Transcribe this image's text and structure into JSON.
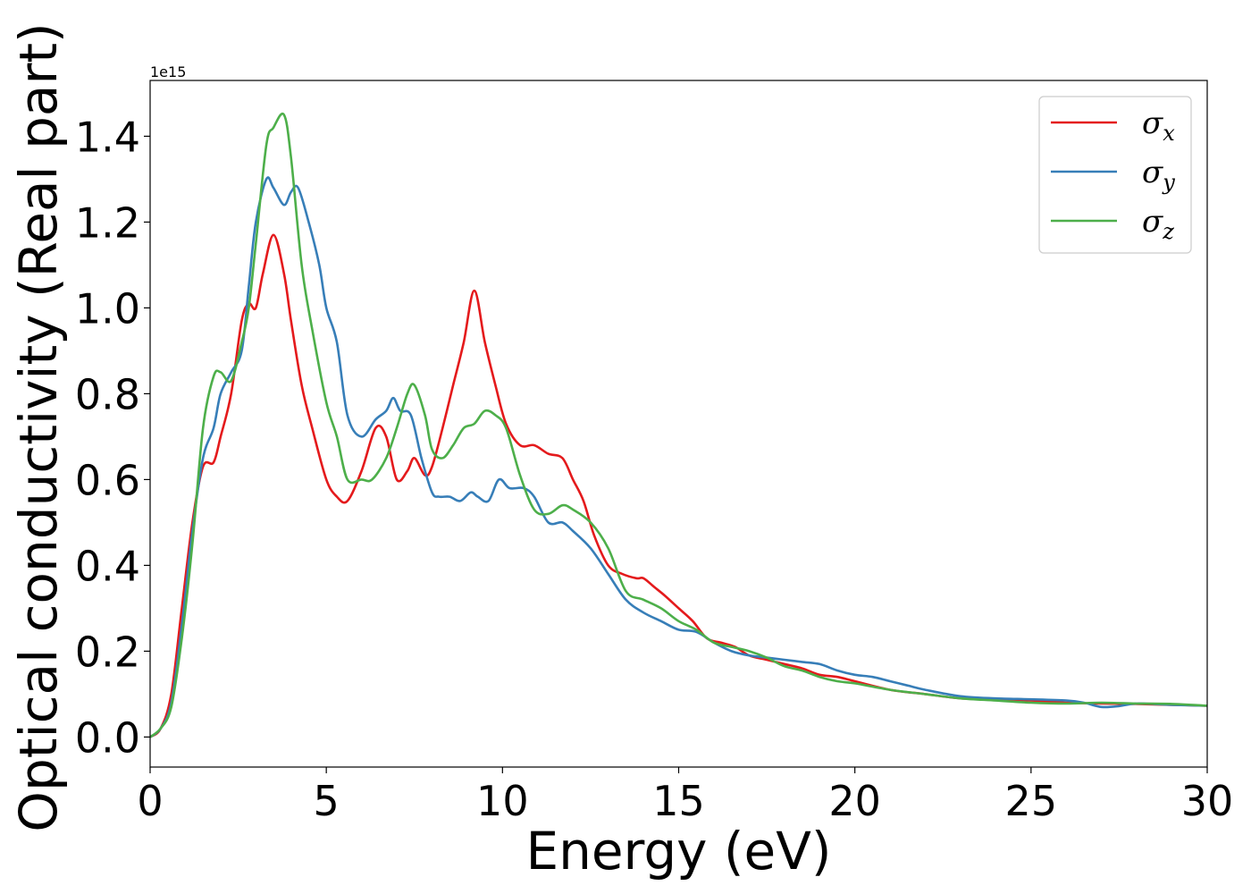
{
  "chart_data": {
    "type": "line",
    "xlabel": "Energy (eV)",
    "ylabel": "Optical conductivity (Real part)",
    "y_offset_label": "1e15",
    "xlim": [
      0,
      30
    ],
    "ylim": [
      -0.07,
      1.53
    ],
    "xticks": [
      0,
      5,
      10,
      15,
      20,
      25,
      30
    ],
    "xtick_labels": [
      "0",
      "5",
      "10",
      "15",
      "20",
      "25",
      "30"
    ],
    "yticks": [
      0.0,
      0.2,
      0.4,
      0.6,
      0.8,
      1.0,
      1.2,
      1.4
    ],
    "ytick_labels": [
      "0.0",
      "0.2",
      "0.4",
      "0.6",
      "0.8",
      "1.0",
      "1.2",
      "1.4"
    ],
    "grid": false,
    "legend_position": "top-right",
    "series": [
      {
        "name": "σx",
        "symbol": "σ",
        "subscript": "x",
        "color": "#e41a1c",
        "x": [
          0,
          0.3,
          0.6,
          0.9,
          1.2,
          1.5,
          1.8,
          2.0,
          2.3,
          2.6,
          2.8,
          3.0,
          3.2,
          3.5,
          3.8,
          4.0,
          4.3,
          4.6,
          5.0,
          5.3,
          5.6,
          6.0,
          6.4,
          6.7,
          7.0,
          7.3,
          7.5,
          7.8,
          8.0,
          8.3,
          8.6,
          8.9,
          9.2,
          9.5,
          9.8,
          10.1,
          10.5,
          10.9,
          11.3,
          11.7,
          12.0,
          12.3,
          12.6,
          13.0,
          13.4,
          13.8,
          14.0,
          14.3,
          14.6,
          15.0,
          15.4,
          15.8,
          16.2,
          16.6,
          17.0,
          17.5,
          18.0,
          18.5,
          19.0,
          19.5,
          20.0,
          21.0,
          22.0,
          23.0,
          24.0,
          25.0,
          26.0,
          27.0,
          28.0,
          29.0,
          30.0
        ],
        "values": [
          0.0,
          0.02,
          0.1,
          0.3,
          0.5,
          0.63,
          0.64,
          0.7,
          0.8,
          0.97,
          1.01,
          1.0,
          1.08,
          1.17,
          1.08,
          0.97,
          0.82,
          0.72,
          0.6,
          0.56,
          0.55,
          0.62,
          0.72,
          0.7,
          0.6,
          0.62,
          0.65,
          0.61,
          0.63,
          0.72,
          0.82,
          0.92,
          1.04,
          0.92,
          0.82,
          0.73,
          0.68,
          0.68,
          0.66,
          0.65,
          0.6,
          0.55,
          0.47,
          0.4,
          0.38,
          0.37,
          0.37,
          0.35,
          0.33,
          0.3,
          0.27,
          0.23,
          0.22,
          0.21,
          0.19,
          0.18,
          0.17,
          0.16,
          0.145,
          0.14,
          0.13,
          0.11,
          0.1,
          0.09,
          0.088,
          0.085,
          0.08,
          0.078,
          0.077,
          0.075,
          0.073
        ]
      },
      {
        "name": "σy",
        "symbol": "σ",
        "subscript": "y",
        "color": "#377eb8",
        "x": [
          0,
          0.3,
          0.6,
          0.9,
          1.2,
          1.5,
          1.8,
          2.0,
          2.3,
          2.6,
          2.8,
          3.0,
          3.3,
          3.5,
          3.8,
          4.0,
          4.2,
          4.5,
          4.8,
          5.0,
          5.3,
          5.6,
          6.0,
          6.4,
          6.7,
          6.9,
          7.1,
          7.4,
          7.7,
          8.0,
          8.2,
          8.5,
          8.8,
          9.1,
          9.3,
          9.6,
          9.9,
          10.2,
          10.6,
          10.9,
          11.3,
          11.7,
          12.0,
          12.5,
          13.0,
          13.5,
          14.0,
          14.5,
          15.0,
          15.5,
          16.0,
          16.5,
          17.0,
          17.5,
          18.0,
          18.5,
          19.0,
          19.5,
          20.0,
          20.5,
          21.0,
          21.5,
          22.0,
          23.0,
          24.0,
          25.0,
          26.0,
          26.5,
          27.0,
          27.5,
          28.0,
          29.0,
          30.0
        ],
        "values": [
          0.0,
          0.02,
          0.08,
          0.26,
          0.48,
          0.65,
          0.72,
          0.8,
          0.85,
          0.9,
          1.05,
          1.2,
          1.3,
          1.28,
          1.24,
          1.27,
          1.28,
          1.2,
          1.1,
          1.0,
          0.92,
          0.75,
          0.7,
          0.74,
          0.76,
          0.79,
          0.76,
          0.75,
          0.65,
          0.57,
          0.56,
          0.56,
          0.55,
          0.57,
          0.56,
          0.55,
          0.6,
          0.58,
          0.58,
          0.56,
          0.5,
          0.5,
          0.48,
          0.44,
          0.38,
          0.32,
          0.29,
          0.27,
          0.25,
          0.245,
          0.22,
          0.2,
          0.19,
          0.185,
          0.18,
          0.175,
          0.17,
          0.155,
          0.145,
          0.14,
          0.13,
          0.12,
          0.11,
          0.095,
          0.09,
          0.088,
          0.085,
          0.08,
          0.07,
          0.072,
          0.078,
          0.075,
          0.073
        ]
      },
      {
        "name": "σz",
        "symbol": "σ",
        "subscript": "z",
        "color": "#4daf4a",
        "x": [
          0,
          0.3,
          0.6,
          0.9,
          1.2,
          1.5,
          1.8,
          2.0,
          2.3,
          2.6,
          2.8,
          3.0,
          3.3,
          3.5,
          3.8,
          4.0,
          4.3,
          4.6,
          5.0,
          5.3,
          5.6,
          6.0,
          6.3,
          6.7,
          7.0,
          7.3,
          7.5,
          7.8,
          8.0,
          8.3,
          8.6,
          8.9,
          9.2,
          9.5,
          9.8,
          10.1,
          10.5,
          10.9,
          11.3,
          11.7,
          12.0,
          12.5,
          13.0,
          13.5,
          14.0,
          14.5,
          15.0,
          15.5,
          16.0,
          16.5,
          17.0,
          17.5,
          18.0,
          18.5,
          19.0,
          19.5,
          20.0,
          21.0,
          22.0,
          23.0,
          24.0,
          25.0,
          26.0,
          27.0,
          28.0,
          29.0,
          30.0
        ],
        "values": [
          0.0,
          0.02,
          0.07,
          0.23,
          0.45,
          0.72,
          0.84,
          0.85,
          0.83,
          0.92,
          1.0,
          1.15,
          1.38,
          1.42,
          1.45,
          1.35,
          1.1,
          0.95,
          0.78,
          0.7,
          0.6,
          0.6,
          0.6,
          0.65,
          0.72,
          0.8,
          0.82,
          0.75,
          0.67,
          0.65,
          0.68,
          0.72,
          0.73,
          0.76,
          0.75,
          0.72,
          0.61,
          0.53,
          0.52,
          0.54,
          0.53,
          0.5,
          0.44,
          0.34,
          0.32,
          0.3,
          0.27,
          0.25,
          0.22,
          0.21,
          0.2,
          0.185,
          0.165,
          0.155,
          0.14,
          0.13,
          0.125,
          0.11,
          0.1,
          0.09,
          0.085,
          0.08,
          0.078,
          0.08,
          0.078,
          0.077,
          0.073
        ]
      }
    ]
  }
}
